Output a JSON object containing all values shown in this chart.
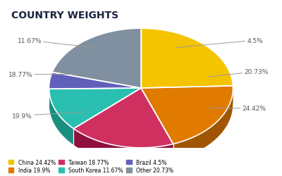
{
  "title": "COUNTRY WEIGHTS",
  "slices": [
    {
      "label": "China",
      "value": 24.42,
      "color": "#F5C400",
      "dark_color": "#C49500"
    },
    {
      "label": "India",
      "value": 19.9,
      "color": "#E07B00",
      "dark_color": "#A05500"
    },
    {
      "label": "Taiwan",
      "value": 18.77,
      "color": "#D03060",
      "dark_color": "#901040"
    },
    {
      "label": "South Korea",
      "value": 11.67,
      "color": "#2ABFB0",
      "dark_color": "#1A8F80"
    },
    {
      "label": "Brazil",
      "value": 4.5,
      "color": "#6060BB",
      "dark_color": "#404080"
    },
    {
      "label": "Other",
      "value": 20.73,
      "color": "#8090A0",
      "dark_color": "#506070"
    }
  ],
  "background_color": "#FFFFFF",
  "title_color": "#1a2340",
  "title_fontsize": 10,
  "legend_labels": [
    "China 24.42%",
    "India 19.9%",
    "Taiwan 18.77%",
    "South Korea 11.67%",
    "Brazil 4.5%",
    "Other 20.73%"
  ],
  "depth_ratio": 0.22
}
